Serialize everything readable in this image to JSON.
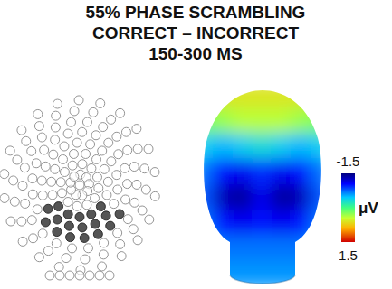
{
  "chart_data": {
    "type": "topomap",
    "title_lines": [
      "55% PHASE SCRAMBLING",
      "CORRECT – INCORRECT",
      "150-300 MS"
    ],
    "cells": [
      [
        0.6,
        0.6,
        0.6,
        0.6,
        0.6,
        0.6,
        0.6
      ],
      [
        0.2,
        0.3,
        0.4,
        0.4,
        0.4,
        0.3,
        0.2
      ],
      [
        -0.4,
        -0.5,
        -0.4,
        -0.3,
        -0.4,
        -0.5,
        -0.4
      ],
      [
        -0.7,
        -1.0,
        -1.1,
        -0.9,
        -1.1,
        -1.0,
        -0.7
      ],
      [
        -0.8,
        -1.3,
        -1.4,
        -1.1,
        -1.4,
        -1.3,
        -0.8
      ],
      [
        -0.7,
        -1.0,
        -1.1,
        -1.0,
        -1.1,
        -1.0,
        -0.7
      ],
      [
        -0.6,
        -0.7,
        -0.7,
        -0.7,
        -0.7,
        -0.7,
        -0.6
      ],
      [
        -0.6,
        -0.6,
        -0.6,
        -0.6,
        -0.6,
        -0.6,
        -0.6
      ]
    ],
    "colorbar": {
      "label": "μV",
      "range": [
        -1.5,
        1.5
      ],
      "ticks": [
        -1.5,
        1.5
      ]
    }
  }
}
